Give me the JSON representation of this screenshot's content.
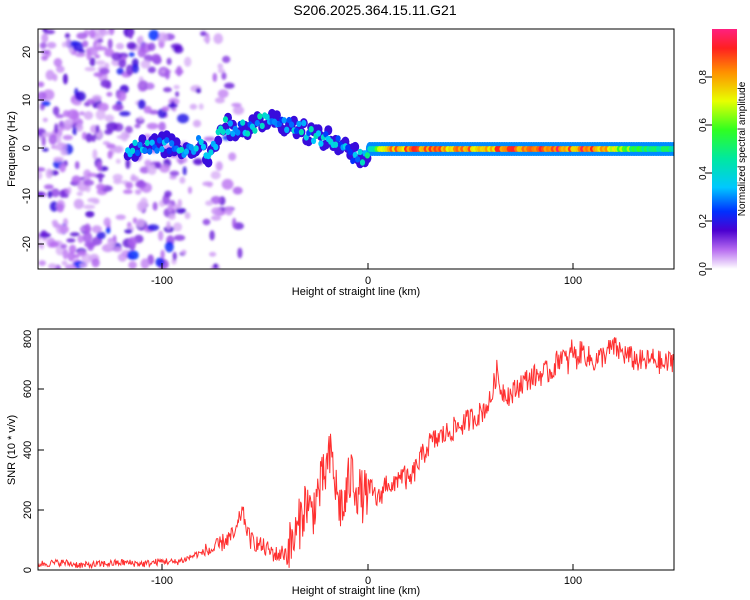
{
  "chart_data": [
    {
      "type": "heatmap",
      "title": "S206.2025.364.15.11.G21",
      "xlabel": "Height of straight line (km)",
      "ylabel": "Frequency (Hz)",
      "xlim": [
        -162,
        150
      ],
      "ylim": [
        -25,
        25
      ],
      "xticks": [
        -100,
        0,
        100
      ],
      "xtick_labels": [
        "-100",
        "0",
        "100"
      ],
      "yticks": [
        -20,
        -10,
        0,
        10,
        20
      ],
      "ytick_labels": [
        "-20",
        "-10",
        "0",
        "10",
        "20"
      ],
      "colorbar": {
        "label": "Normalized spectral amplitude",
        "range": [
          0,
          1
        ],
        "ticks": [
          0.0,
          0.2,
          0.4,
          0.6,
          0.8
        ],
        "tick_labels": [
          "0.0",
          "0.2",
          "0.4",
          "0.6",
          "0.8"
        ]
      },
      "ridge": [
        {
          "x": -118,
          "f": 0,
          "a": 0.35
        },
        {
          "x": -98,
          "f": 1,
          "a": 0.3
        },
        {
          "x": -90,
          "f": 0,
          "a": 0.35
        },
        {
          "x": -82,
          "f": 1,
          "a": 0.3
        },
        {
          "x": -78,
          "f": -2,
          "a": 0.3
        },
        {
          "x": -72,
          "f": 5,
          "a": 0.35
        },
        {
          "x": -64,
          "f": 4,
          "a": 0.3
        },
        {
          "x": -56,
          "f": 5,
          "a": 0.35
        },
        {
          "x": -50,
          "f": 6,
          "a": 0.35
        },
        {
          "x": -44,
          "f": 6,
          "a": 0.3
        },
        {
          "x": -38,
          "f": 5,
          "a": 0.35
        },
        {
          "x": -32,
          "f": 4,
          "a": 0.35
        },
        {
          "x": -26,
          "f": 3,
          "a": 0.35
        },
        {
          "x": -20,
          "f": 2,
          "a": 0.35
        },
        {
          "x": -14,
          "f": 1,
          "a": 0.3
        },
        {
          "x": -8,
          "f": -1,
          "a": 0.3
        },
        {
          "x": -4,
          "f": -2,
          "a": 0.3
        },
        {
          "x": 0,
          "f": 0,
          "a": 0.4
        },
        {
          "x": 10,
          "f": 0,
          "a": 0.85
        },
        {
          "x": 30,
          "f": 0,
          "a": 0.9
        },
        {
          "x": 50,
          "f": 0,
          "a": 0.85
        },
        {
          "x": 70,
          "f": 0,
          "a": 0.9
        },
        {
          "x": 90,
          "f": 0,
          "a": 0.95
        },
        {
          "x": 110,
          "f": 0,
          "a": 0.9
        },
        {
          "x": 130,
          "f": 0,
          "a": 0.6
        },
        {
          "x": 150,
          "f": 0,
          "a": 0.5
        }
      ]
    },
    {
      "type": "line",
      "xlabel": "Height of straight line (km)",
      "ylabel": "SNR (10 * v/v)",
      "xlim": [
        -162,
        150
      ],
      "ylim": [
        0,
        800
      ],
      "xticks": [
        -100,
        0,
        100
      ],
      "xtick_labels": [
        "-100",
        "0",
        "100"
      ],
      "yticks": [
        0,
        200,
        400,
        600,
        800
      ],
      "ytick_labels": [
        "0",
        "200",
        "400",
        "600",
        "800"
      ],
      "color": "#ff3030",
      "series": [
        {
          "name": "SNR",
          "x": [
            -162,
            -150,
            -140,
            -130,
            -120,
            -110,
            -100,
            -95,
            -90,
            -85,
            -80,
            -75,
            -70,
            -65,
            -62,
            -60,
            -58,
            -55,
            -50,
            -45,
            -40,
            -35,
            -32,
            -30,
            -28,
            -25,
            -22,
            -20,
            -18,
            -15,
            -12,
            -10,
            -8,
            -5,
            -2,
            0,
            2,
            5,
            8,
            10,
            12,
            15,
            18,
            20,
            25,
            30,
            35,
            40,
            45,
            50,
            55,
            60,
            63,
            65,
            70,
            75,
            80,
            85,
            90,
            95,
            98,
            100,
            102,
            105,
            110,
            115,
            120,
            125,
            130,
            135,
            140,
            145,
            150
          ],
          "y": [
            20,
            25,
            15,
            20,
            25,
            20,
            30,
            25,
            35,
            50,
            60,
            70,
            100,
            120,
            200,
            150,
            100,
            90,
            70,
            50,
            60,
            120,
            200,
            230,
            180,
            250,
            300,
            350,
            380,
            230,
            200,
            280,
            320,
            260,
            240,
            270,
            260,
            230,
            280,
            300,
            260,
            320,
            310,
            290,
            360,
            420,
            440,
            460,
            480,
            500,
            520,
            560,
            660,
            600,
            580,
            620,
            640,
            650,
            660,
            720,
            680,
            740,
            700,
            730,
            690,
            710,
            740,
            720,
            700,
            690,
            700,
            680,
            700
          ]
        }
      ]
    }
  ]
}
